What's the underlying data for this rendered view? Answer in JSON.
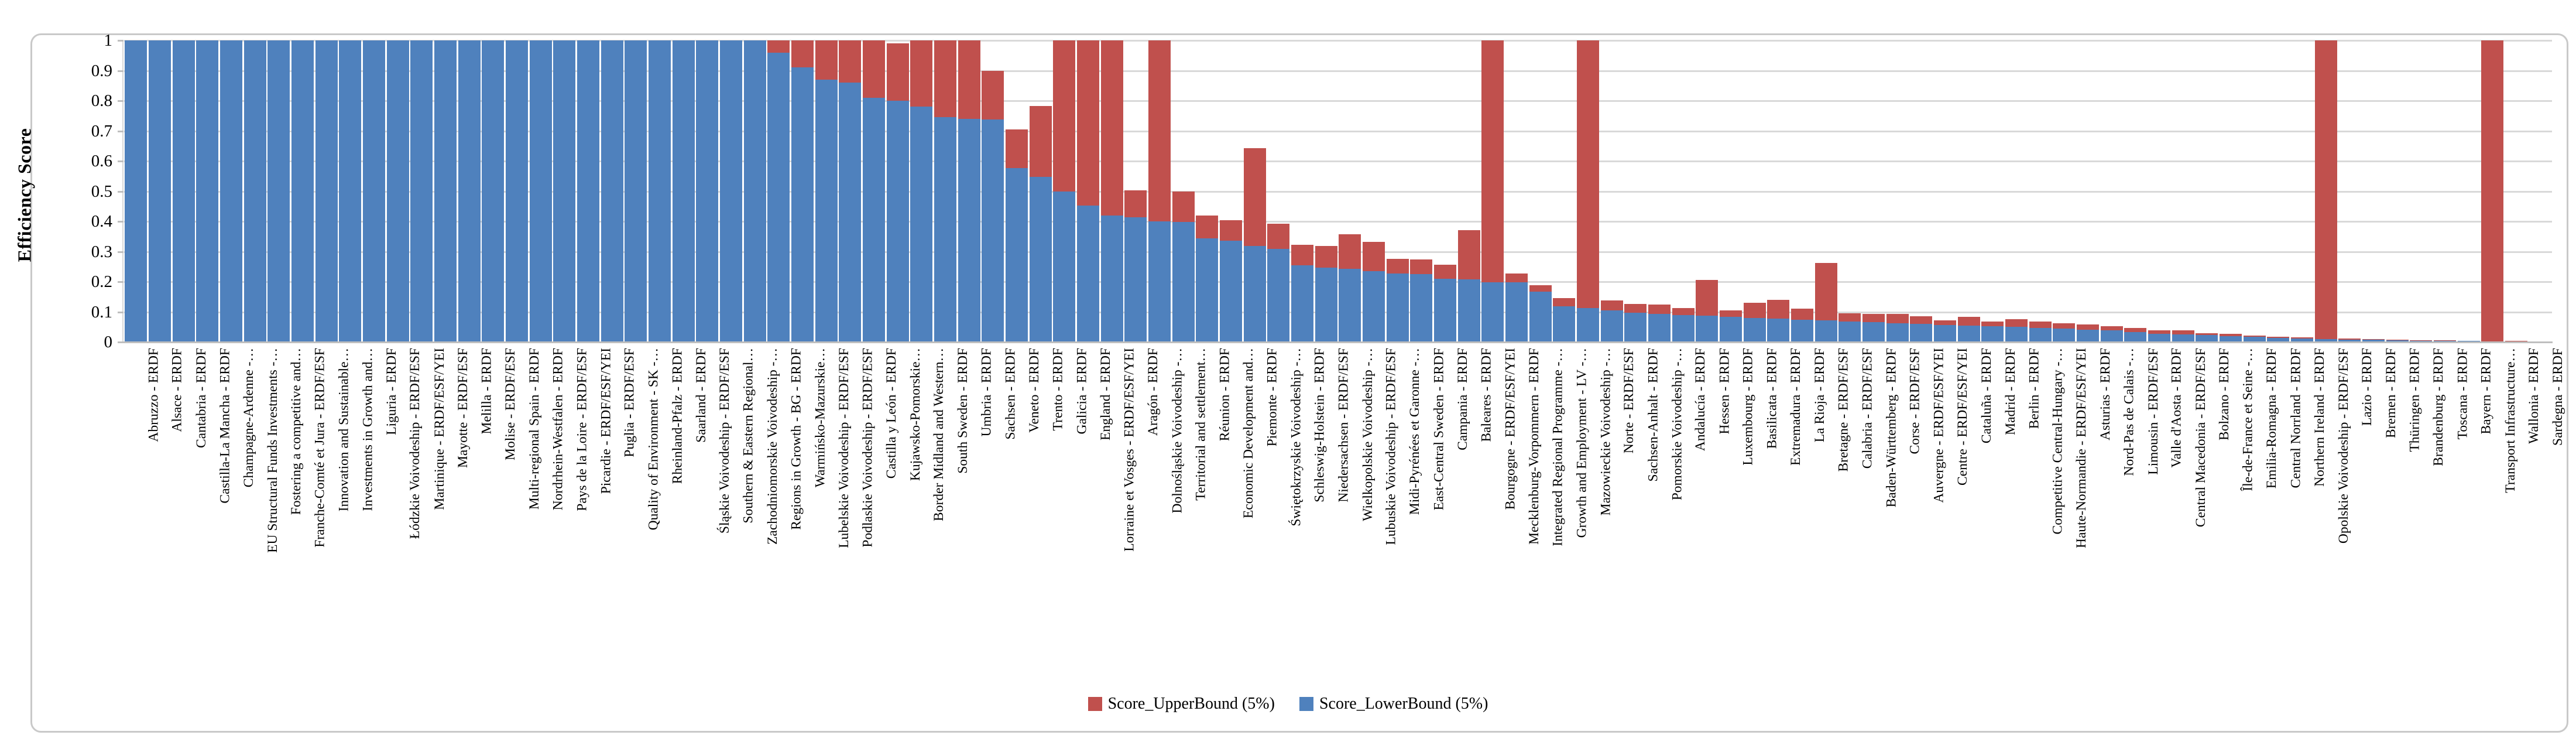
{
  "chart_data": {
    "type": "bar",
    "stacked": true,
    "title": "",
    "xlabel": "",
    "ylabel": "Efficiency Score",
    "ylim": [
      0,
      1
    ],
    "yticks": [
      "1",
      "0.9",
      "0.8",
      "0.7",
      "0.6",
      "0.5",
      "0.4",
      "0.3",
      "0.2",
      "0.1",
      "0"
    ],
    "grid": true,
    "legend_position": "bottom-center",
    "legend": [
      {
        "name": "Score_UpperBound (5%)",
        "color": "#c0504d"
      },
      {
        "name": "Score_LowerBound (5%)",
        "color": "#4f81bd"
      }
    ],
    "categories": [
      "Abruzzo - ERDF",
      "Alsace - ERDF",
      "Cantabria - ERDF",
      "Castilla-La Mancha - ERDF",
      "Champagne-Ardenne -…",
      "EU Structural Funds Investments -…",
      "Fostering a competitive and…",
      "Franche-Comté et Jura - ERDF/ESF",
      "Innovation and Sustainable…",
      "Investments in Growth and…",
      "Liguria - ERDF",
      "Łódzkie Voivodeship - ERDF/ESF",
      "Martinique - ERDF/ESF/YEI",
      "Mayotte - ERDF/ESF",
      "Melilla - ERDF",
      "Molise - ERDF/ESF",
      "Multi-regional Spain - ERDF",
      "Nordrhein-Westfalen - ERDF",
      "Pays de la Loire - ERDF/ESF",
      "Picardie - ERDF/ESF/YEI",
      "Puglia - ERDF/ESF",
      "Quality of Environment - SK -…",
      "Rheinland-Pfalz - ERDF",
      "Saarland - ERDF",
      "Śląskie Voivodeship - ERDF/ESF",
      "Southern & Eastern Regional…",
      "Zachodniomorskie Voivodeship -…",
      "Regions in Growth - BG - ERDF",
      "Warmińsko-Mazurskie…",
      "Lubelskie Voivodeship - ERDF/ESF",
      "Podlaskie Voivodeship - ERDF/ESF",
      "Castilla y León - ERDF",
      "Kujawsko-Pomorskie…",
      "Border Midland and Western…",
      "South Sweden - ERDF",
      "Umbria - ERDF",
      "Sachsen - ERDF",
      "Veneto - ERDF",
      "Trento - ERDF",
      "Galicia - ERDF",
      "England - ERDF",
      "Lorraine et Vosges - ERDF/ESF/YEI",
      "Aragón - ERDF",
      "Dolnośląskie Voivodeship -…",
      "Territorial and settlement…",
      "Réunion - ERDF",
      "Economic Development and…",
      "Piemonte - ERDF",
      "Świętokrzyskie Voivodeship -…",
      "Schleswig-Holstein - ERDF",
      "Niedersachsen - ERDF/ESF",
      "Wielkopolskie Voivodeship -…",
      "Lubuskie Voivodeship - ERDF/ESF",
      "Midi-Pyrénées et Garonne -…",
      "East-Central Sweden - ERDF",
      "Campania - ERDF",
      "Baleares - ERDF",
      "Bourgogne - ERDF/ESF/YEI",
      "Mecklenburg-Vorpommern - ERDF",
      "Integrated Regional Programme -…",
      "Growth and Employment - LV -…",
      "Mazowieckie Voivodeship -…",
      "Norte - ERDF/ESF",
      "Sachsen-Anhalt - ERDF",
      "Pomorskie Voivodeship -…",
      "Andalucía - ERDF",
      "Hessen - ERDF",
      "Luxembourg - ERDF",
      "Basilicata - ERDF",
      "Extremadura - ERDF",
      "La Rioja - ERDF",
      "Bretagne - ERDF/ESF",
      "Calabria - ERDF/ESF",
      "Baden-Württemberg - ERDF",
      "Corse - ERDF/ESF",
      "Auvergne - ERDF/ESF/YEI",
      "Centre - ERDF/ESF/YEI",
      "Cataluña - ERDF",
      "Madrid - ERDF",
      "Berlin - ERDF",
      "Competitive Central-Hungary -…",
      "Haute-Normandie - ERDF/ESF/YEI",
      "Asturias - ERDF",
      "Nord-Pas de Calais -…",
      "Limousin - ERDF/ESF",
      "Valle d'Aosta - ERDF",
      "Central Macedonia - ERDF/ESF",
      "Bolzano - ERDF",
      "Île-de-France et Seine -…",
      "Emilia-Romagna - ERDF",
      "Central Norrland - ERDF",
      "Northern Ireland - ERDF",
      "Opolskie Voivodeship - ERDF/ESF",
      "Lazio - ERDF",
      "Bremen - ERDF",
      "Thüringen - ERDF",
      "Brandenburg - ERDF",
      "Toscana - ERDF",
      "Bayern - ERDF",
      "Transport Infrastructure…",
      "Wallonia - ERDF",
      "Sardegna - ERDF"
    ],
    "series": [
      {
        "name": "Score_LowerBound (5%)",
        "color": "#4f81bd",
        "values": [
          1,
          1,
          1,
          1,
          1,
          1,
          1,
          1,
          1,
          1,
          1,
          1,
          1,
          1,
          1,
          1,
          1,
          1,
          1,
          1,
          1,
          1,
          1,
          1,
          1,
          1,
          1,
          0.96,
          0.91,
          0.87,
          0.86,
          0.81,
          0.8,
          0.78,
          0.745,
          0.74,
          0.737,
          0.577,
          0.547,
          0.5,
          0.452,
          0.42,
          0.413,
          0.4,
          0.398,
          0.344,
          0.335,
          0.318,
          0.309,
          0.254,
          0.247,
          0.243,
          0.235,
          0.228,
          0.226,
          0.21,
          0.208,
          0.199,
          0.198,
          0.167,
          0.118,
          0.113,
          0.105,
          0.098,
          0.094,
          0.09,
          0.087,
          0.083,
          0.08,
          0.077,
          0.074,
          0.071,
          0.068,
          0.066,
          0.063,
          0.06,
          0.057,
          0.055,
          0.052,
          0.05,
          0.047,
          0.044,
          0.041,
          0.038,
          0.033,
          0.028,
          0.026,
          0.023,
          0.02,
          0.017,
          0.014,
          0.012,
          0.01,
          0.008,
          0.007,
          0.005,
          0.004,
          0.0035,
          0.003,
          0.0025,
          0.002,
          0.001
        ]
      },
      {
        "name": "Score_UpperBound (5%)",
        "color": "#c0504d",
        "values": [
          1,
          1,
          1,
          1,
          1,
          1,
          1,
          1,
          1,
          1,
          1,
          1,
          1,
          1,
          1,
          1,
          1,
          1,
          1,
          1,
          1,
          1,
          1,
          1,
          1,
          1,
          1,
          1,
          1,
          1,
          1,
          1,
          0.99,
          1,
          1,
          1,
          0.9,
          0.705,
          0.783,
          1,
          1,
          1,
          0.503,
          1,
          0.5,
          0.42,
          0.404,
          0.643,
          0.393,
          0.322,
          0.318,
          0.357,
          0.332,
          0.276,
          0.274,
          0.257,
          0.371,
          1,
          0.227,
          0.189,
          0.145,
          1,
          0.137,
          0.126,
          0.124,
          0.113,
          0.206,
          0.105,
          0.13,
          0.14,
          0.111,
          0.263,
          0.095,
          0.094,
          0.093,
          0.085,
          0.072,
          0.084,
          0.068,
          0.076,
          0.068,
          0.062,
          0.058,
          0.053,
          0.047,
          0.039,
          0.038,
          0.03,
          0.028,
          0.022,
          0.018,
          0.016,
          1,
          0.012,
          0.01,
          0.007,
          0.006,
          0.005,
          0.004,
          1,
          0.003,
          0.002
        ]
      }
    ]
  },
  "axis": {
    "y_title": "Efficiency Score"
  },
  "legend": {
    "upper_label": "Score_UpperBound (5%)",
    "lower_label": "Score_LowerBound (5%)"
  },
  "colors": {
    "upper": "#c0504d",
    "lower": "#4f81bd",
    "gridline": "#d9d9d9",
    "axis_line": "#bfbfbf",
    "border": "#c9c9c9",
    "background": "#ffffff"
  }
}
